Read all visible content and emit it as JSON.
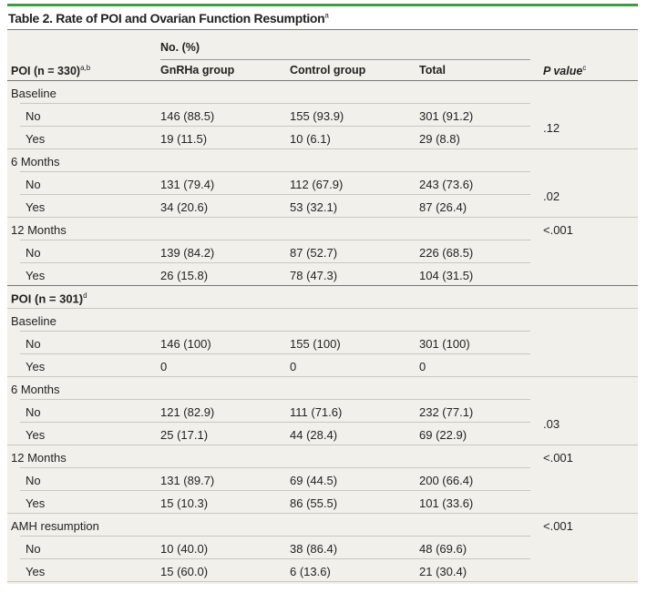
{
  "title": "Table 2. Rate of POI and Ovarian Function Resumption",
  "title_sup": "a",
  "accent_color": "#3f9a45",
  "header": {
    "spanner": "No. (%)",
    "col0": "POI (n = 330)",
    "col0_sup": "a,b",
    "col1": "GnRHa group",
    "col2": "Control group",
    "col3": "Total",
    "p": "P value",
    "p_sup": "c"
  },
  "sections": [
    {
      "label": "",
      "label_sup": "",
      "groups": [
        {
          "label": "Baseline",
          "p_value": ".12",
          "p_span": "rows",
          "rows": [
            {
              "label": "No",
              "gnrha": "146 (88.5)",
              "control": "155 (93.9)",
              "total": "301 (91.2)"
            },
            {
              "label": "Yes",
              "gnrha": "19 (11.5)",
              "control": "10 (6.1)",
              "total": "29 (8.8)"
            }
          ]
        },
        {
          "label": "6 Months",
          "p_value": ".02",
          "p_span": "rows",
          "rows": [
            {
              "label": "No",
              "gnrha": "131 (79.4)",
              "control": "112 (67.9)",
              "total": "243 (73.6)"
            },
            {
              "label": "Yes",
              "gnrha": "34 (20.6)",
              "control": "53 (32.1)",
              "total": "87 (26.4)"
            }
          ]
        },
        {
          "label": "12 Months",
          "p_value": "<.001",
          "p_span": "category",
          "rows": [
            {
              "label": "No",
              "gnrha": "139 (84.2)",
              "control": "87 (52.7)",
              "total": "226 (68.5)"
            },
            {
              "label": "Yes",
              "gnrha": "26 (15.8)",
              "control": "78 (47.3)",
              "total": "104 (31.5)"
            }
          ]
        }
      ]
    },
    {
      "label": "POI (n = 301)",
      "label_sup": "d",
      "groups": [
        {
          "label": "Baseline",
          "p_value": "",
          "p_span": "rows",
          "rows": [
            {
              "label": "No",
              "gnrha": "146 (100)",
              "control": "155 (100)",
              "total": "301 (100)"
            },
            {
              "label": "Yes",
              "gnrha": "0",
              "control": "0",
              "total": "0"
            }
          ]
        },
        {
          "label": "6 Months",
          "p_value": ".03",
          "p_span": "rows",
          "rows": [
            {
              "label": "No",
              "gnrha": "121 (82.9)",
              "control": "111 (71.6)",
              "total": "232 (77.1)"
            },
            {
              "label": "Yes",
              "gnrha": "25 (17.1)",
              "control": "44 (28.4)",
              "total": "69 (22.9)"
            }
          ]
        },
        {
          "label": "12 Months",
          "p_value": "<.001",
          "p_span": "category",
          "rows": [
            {
              "label": "No",
              "gnrha": "131 (89.7)",
              "control": "69 (44.5)",
              "total": "200 (66.4)"
            },
            {
              "label": "Yes",
              "gnrha": "15 (10.3)",
              "control": "86 (55.5)",
              "total": "101 (33.6)"
            }
          ]
        },
        {
          "label": "AMH resumption",
          "p_value": "<.001",
          "p_span": "category",
          "rows": [
            {
              "label": "No",
              "gnrha": "10 (40.0)",
              "control": "38 (86.4)",
              "total": "48 (69.6)"
            },
            {
              "label": "Yes",
              "gnrha": "15 (60.0)",
              "control": "6 (13.6)",
              "total": "21 (30.4)"
            }
          ]
        }
      ]
    }
  ]
}
